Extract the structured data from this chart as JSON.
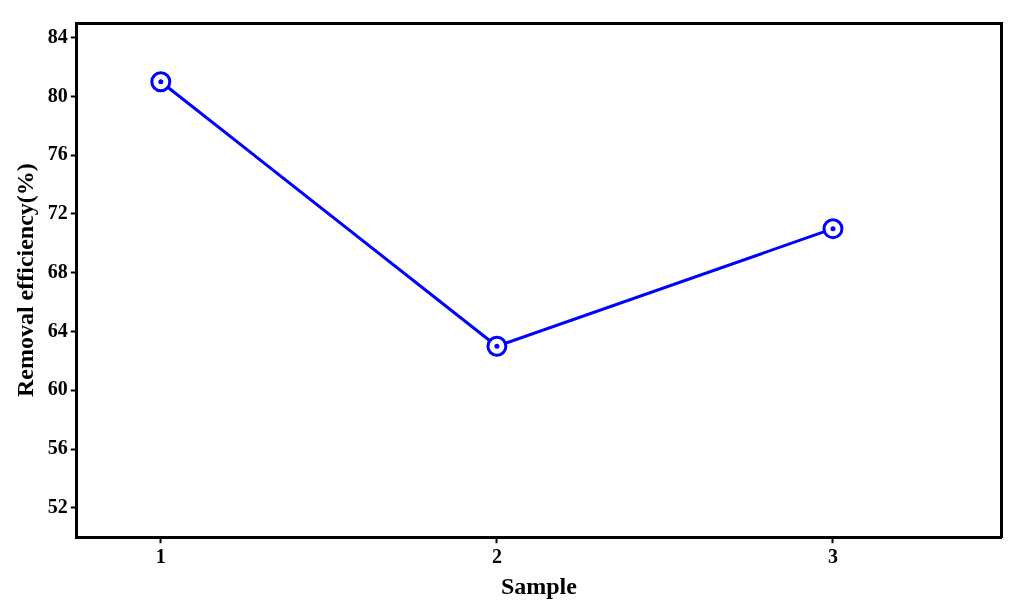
{
  "chart_data": {
    "type": "line",
    "xlabel": "Sample",
    "ylabel": "Removal efficiency(%)",
    "x": [
      1,
      2,
      3
    ],
    "series": [
      {
        "color": "#0000ff",
        "values": [
          81,
          63,
          71
        ]
      }
    ],
    "xlim": [
      0.75,
      3.5
    ],
    "xticks": [
      1,
      2,
      3
    ],
    "ylim": [
      50,
      85
    ],
    "yticks": [
      52,
      56,
      60,
      64,
      68,
      72,
      76,
      80,
      84
    ],
    "grid": false,
    "legend": false,
    "marker": "circle",
    "line_style": "solid"
  }
}
